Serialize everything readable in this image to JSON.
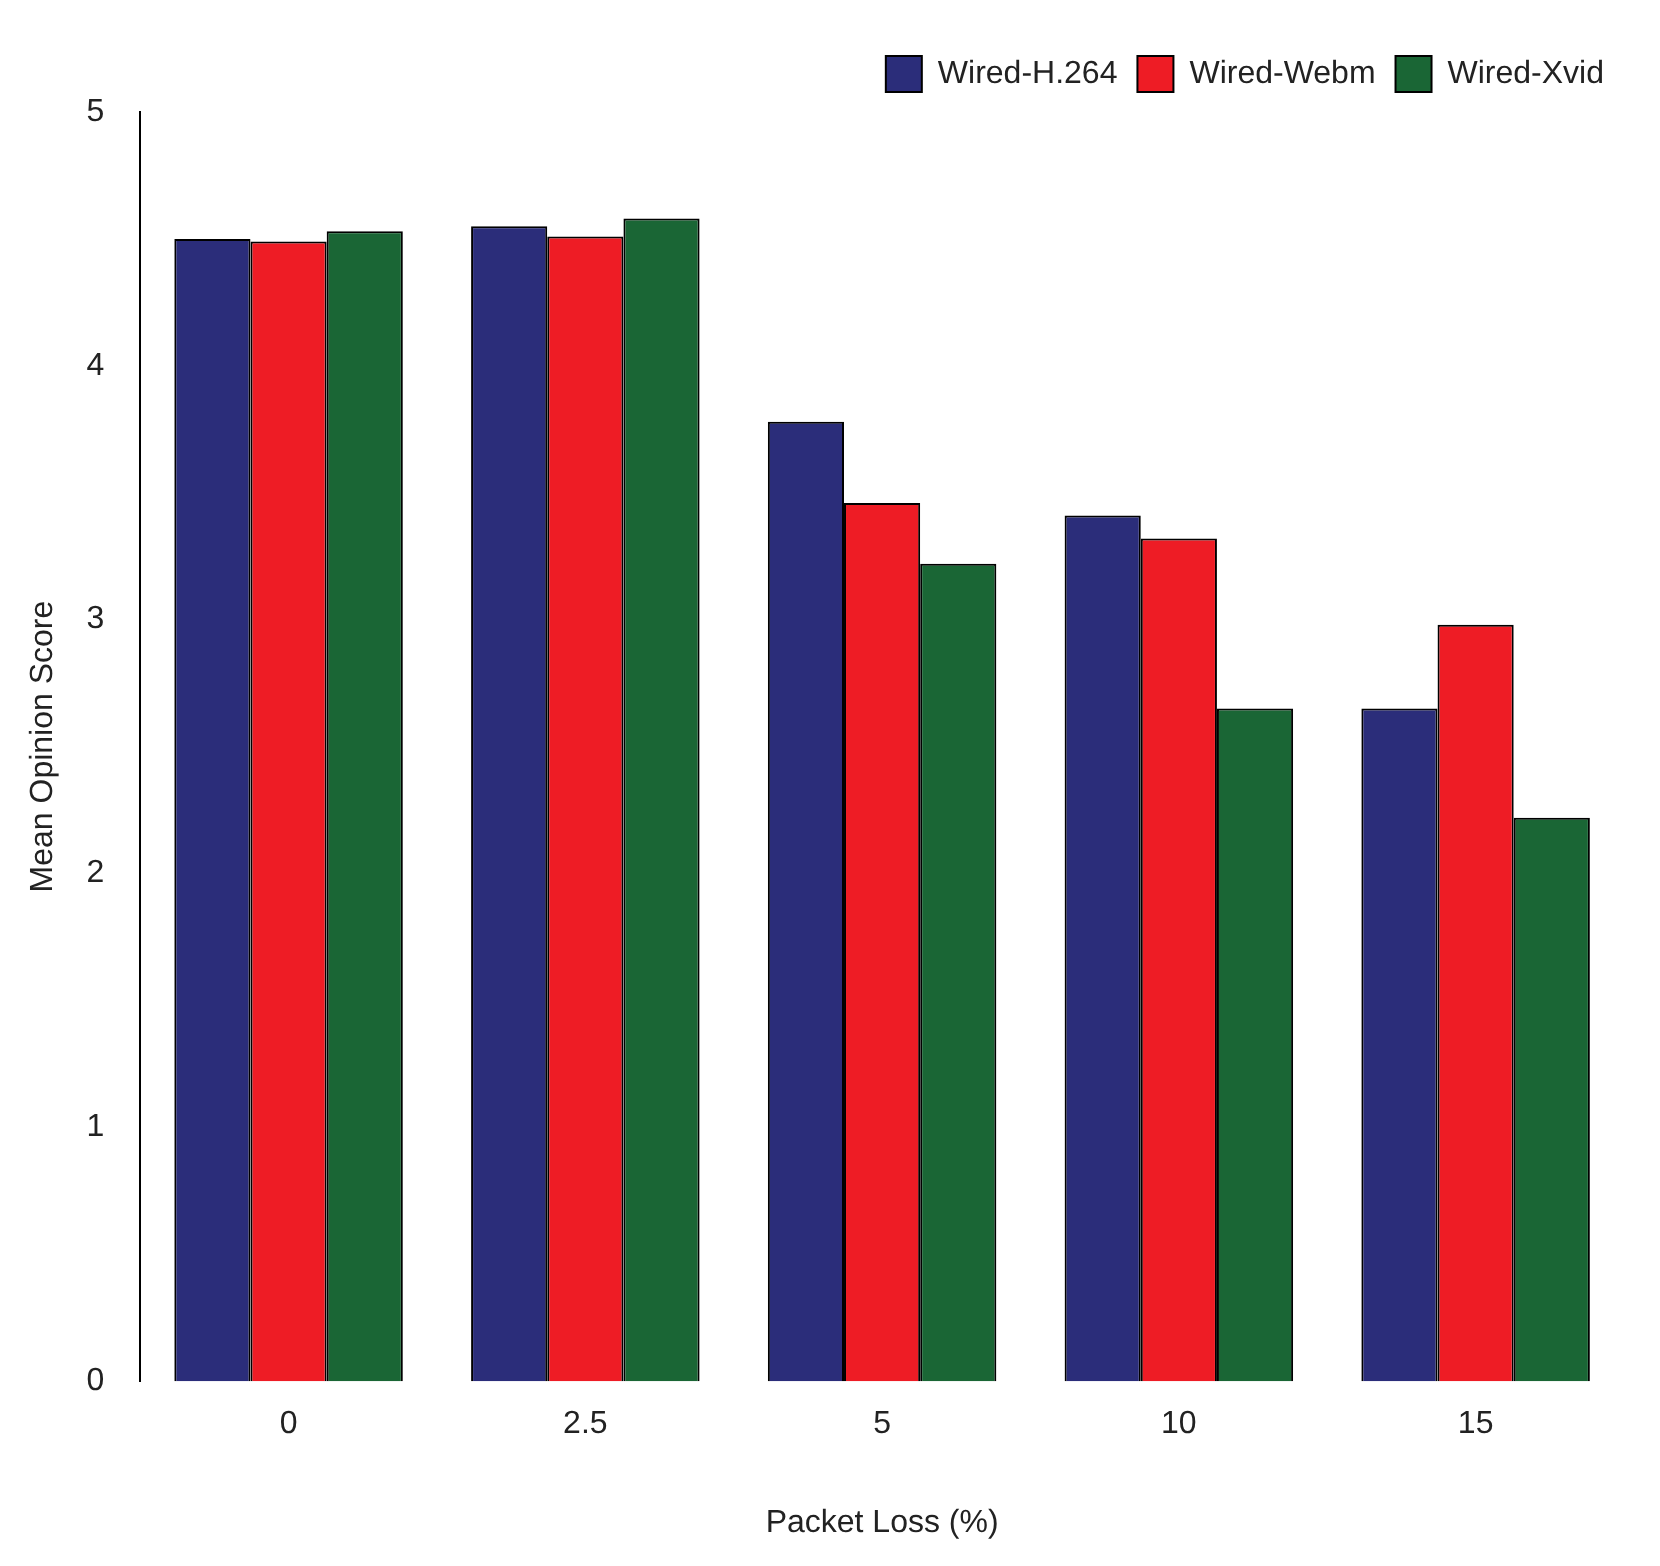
{
  "chart_data": {
    "type": "bar",
    "xlabel": "Packet Loss (%)",
    "ylabel": "Mean Opinion Score",
    "categories": [
      "0",
      "2.5",
      "5",
      "10",
      "15"
    ],
    "series": [
      {
        "name": "Wired-H.264",
        "color": "#2b2d7a",
        "values": [
          4.5,
          4.55,
          3.78,
          3.41,
          2.65
        ]
      },
      {
        "name": "Wired-Webm",
        "color": "#ee1c25",
        "values": [
          4.49,
          4.51,
          3.46,
          3.32,
          2.98
        ]
      },
      {
        "name": "Wired-Xvid",
        "color": "#1a6635",
        "values": [
          4.53,
          4.58,
          3.22,
          2.65,
          2.22
        ]
      }
    ],
    "ylim": [
      0,
      5
    ],
    "yticks": [
      0,
      1,
      2,
      3,
      4,
      5
    ],
    "grid": false,
    "legend": "top right"
  }
}
